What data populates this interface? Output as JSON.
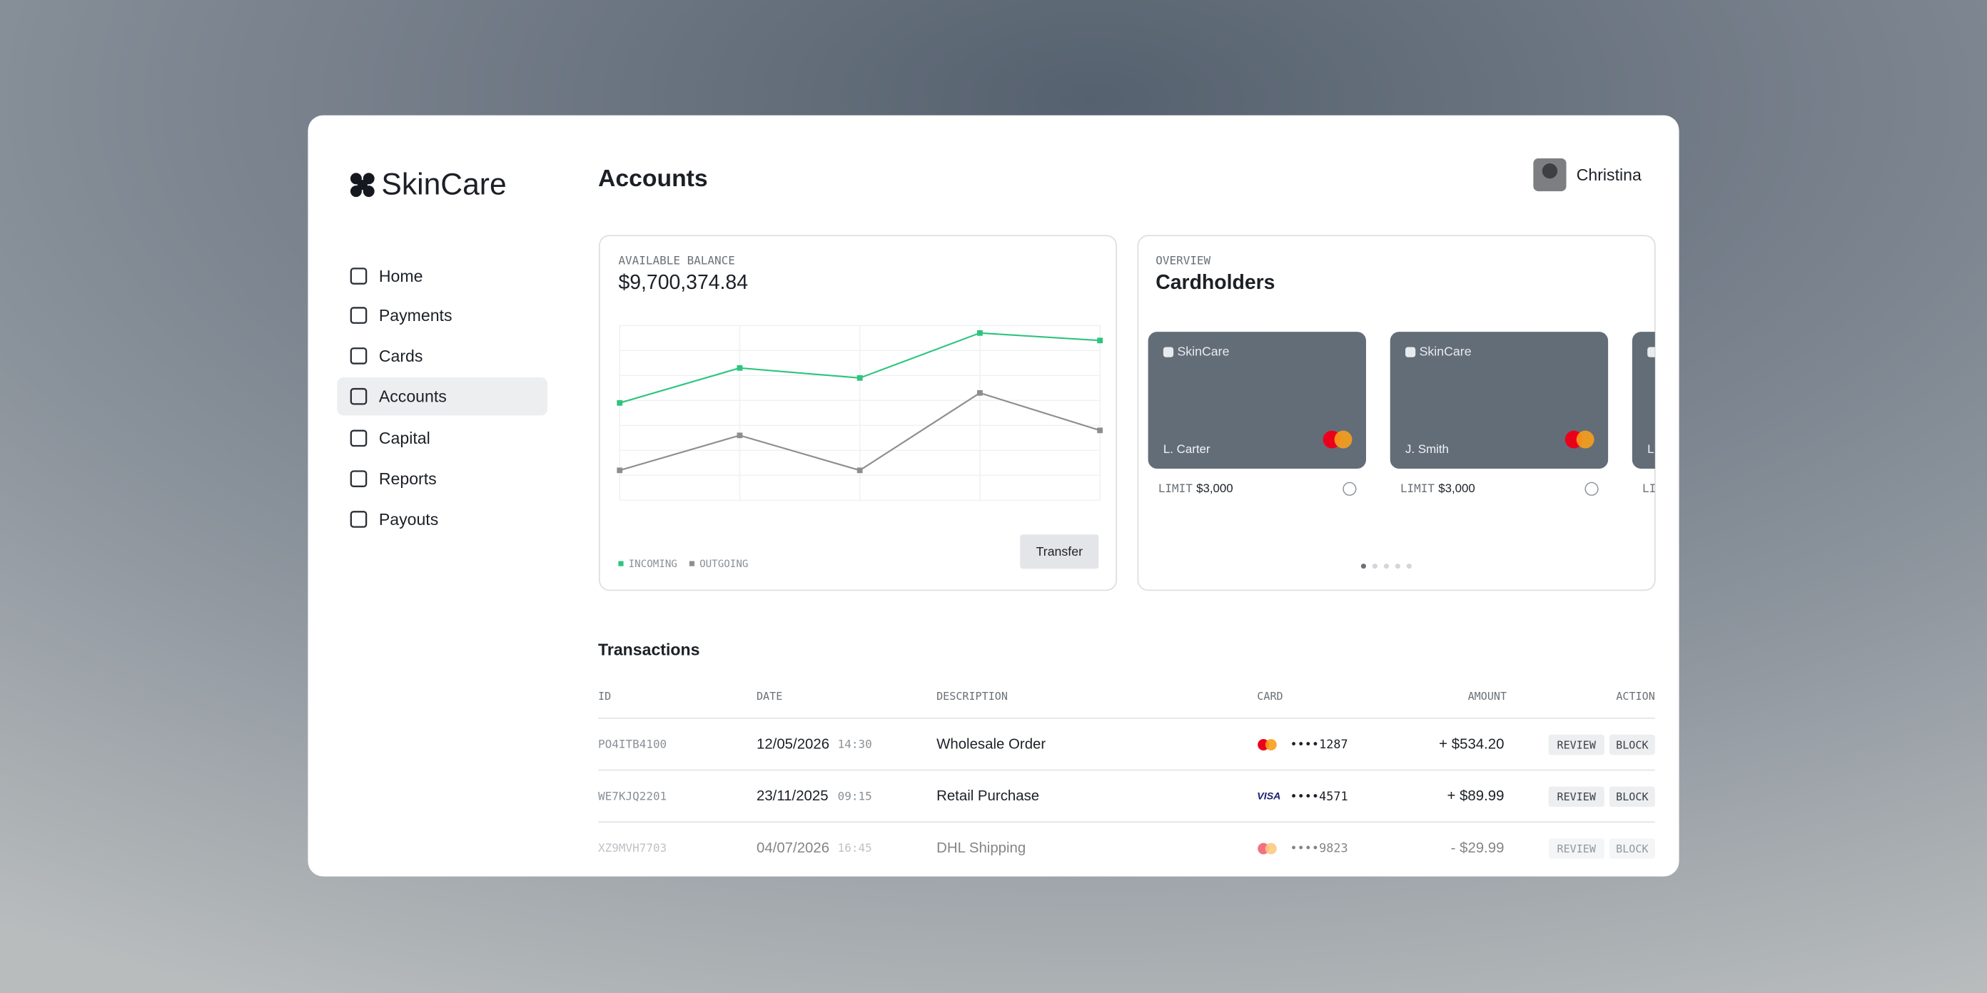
{
  "sidebar": {
    "logo": "SkinCare",
    "nav": [
      "Home",
      "Payments",
      "Cards",
      "Accounts",
      "Capital",
      "Reports",
      "Payouts"
    ],
    "active": 3
  },
  "header": {
    "title": "Accounts",
    "user": "Christina"
  },
  "balance": {
    "label": "AVAILABLE BALANCE",
    "amount": "$9,700,374.84",
    "button": "Transfer"
  },
  "chart_data": {
    "type": "line",
    "categories": [
      null,
      null,
      null,
      null,
      null
    ],
    "series": [
      {
        "name": "INCOMING",
        "color": "#2ec47e",
        "values": [
          3.9,
          5.3,
          4.9,
          6.7,
          6.4
        ]
      },
      {
        "name": "OUTGOING",
        "color": "#8e8e8e",
        "values": [
          1.2,
          2.6,
          1.2,
          4.3,
          2.8
        ]
      }
    ],
    "ylim": [
      0,
      7
    ],
    "yticks": [
      0,
      1,
      2,
      3,
      4,
      5,
      6,
      7
    ],
    "grid": true
  },
  "cardholders": {
    "label": "OVERVIEW",
    "title": "Cardholders",
    "cards": [
      {
        "brand": "SkinCare",
        "name": "L. Carter",
        "limit_label": "LIMIT",
        "limit": "$3,000"
      },
      {
        "brand": "SkinCare",
        "name": "J. Smith",
        "limit_label": "LIMIT",
        "limit": "$3,000"
      },
      {
        "brand": "SkinCare",
        "name": "L.",
        "limit_label": "LIMIT"
      }
    ]
  },
  "transactions": {
    "title": "Transactions",
    "columns": [
      "ID",
      "DATE",
      "DESCRIPTION",
      "CARD",
      "AMOUNT",
      "ACTION"
    ],
    "actions": [
      "REVIEW",
      "BLOCK"
    ],
    "rows": [
      [
        "PO4ITB4100",
        "12/05/2026",
        "14:30",
        "Wholesale Order",
        "mastercard",
        "••••1287",
        "+ $534.20"
      ],
      [
        "WE7KJQ2201",
        "23/11/2025",
        "09:15",
        "Retail Purchase",
        "VISA",
        "••••4571",
        "+ $89.99"
      ],
      [
        "XZ9MVH7703",
        "04/07/2026",
        "16:45",
        "DHL Shipping",
        "mastercard",
        "••••9823",
        "- $29.99"
      ]
    ]
  }
}
